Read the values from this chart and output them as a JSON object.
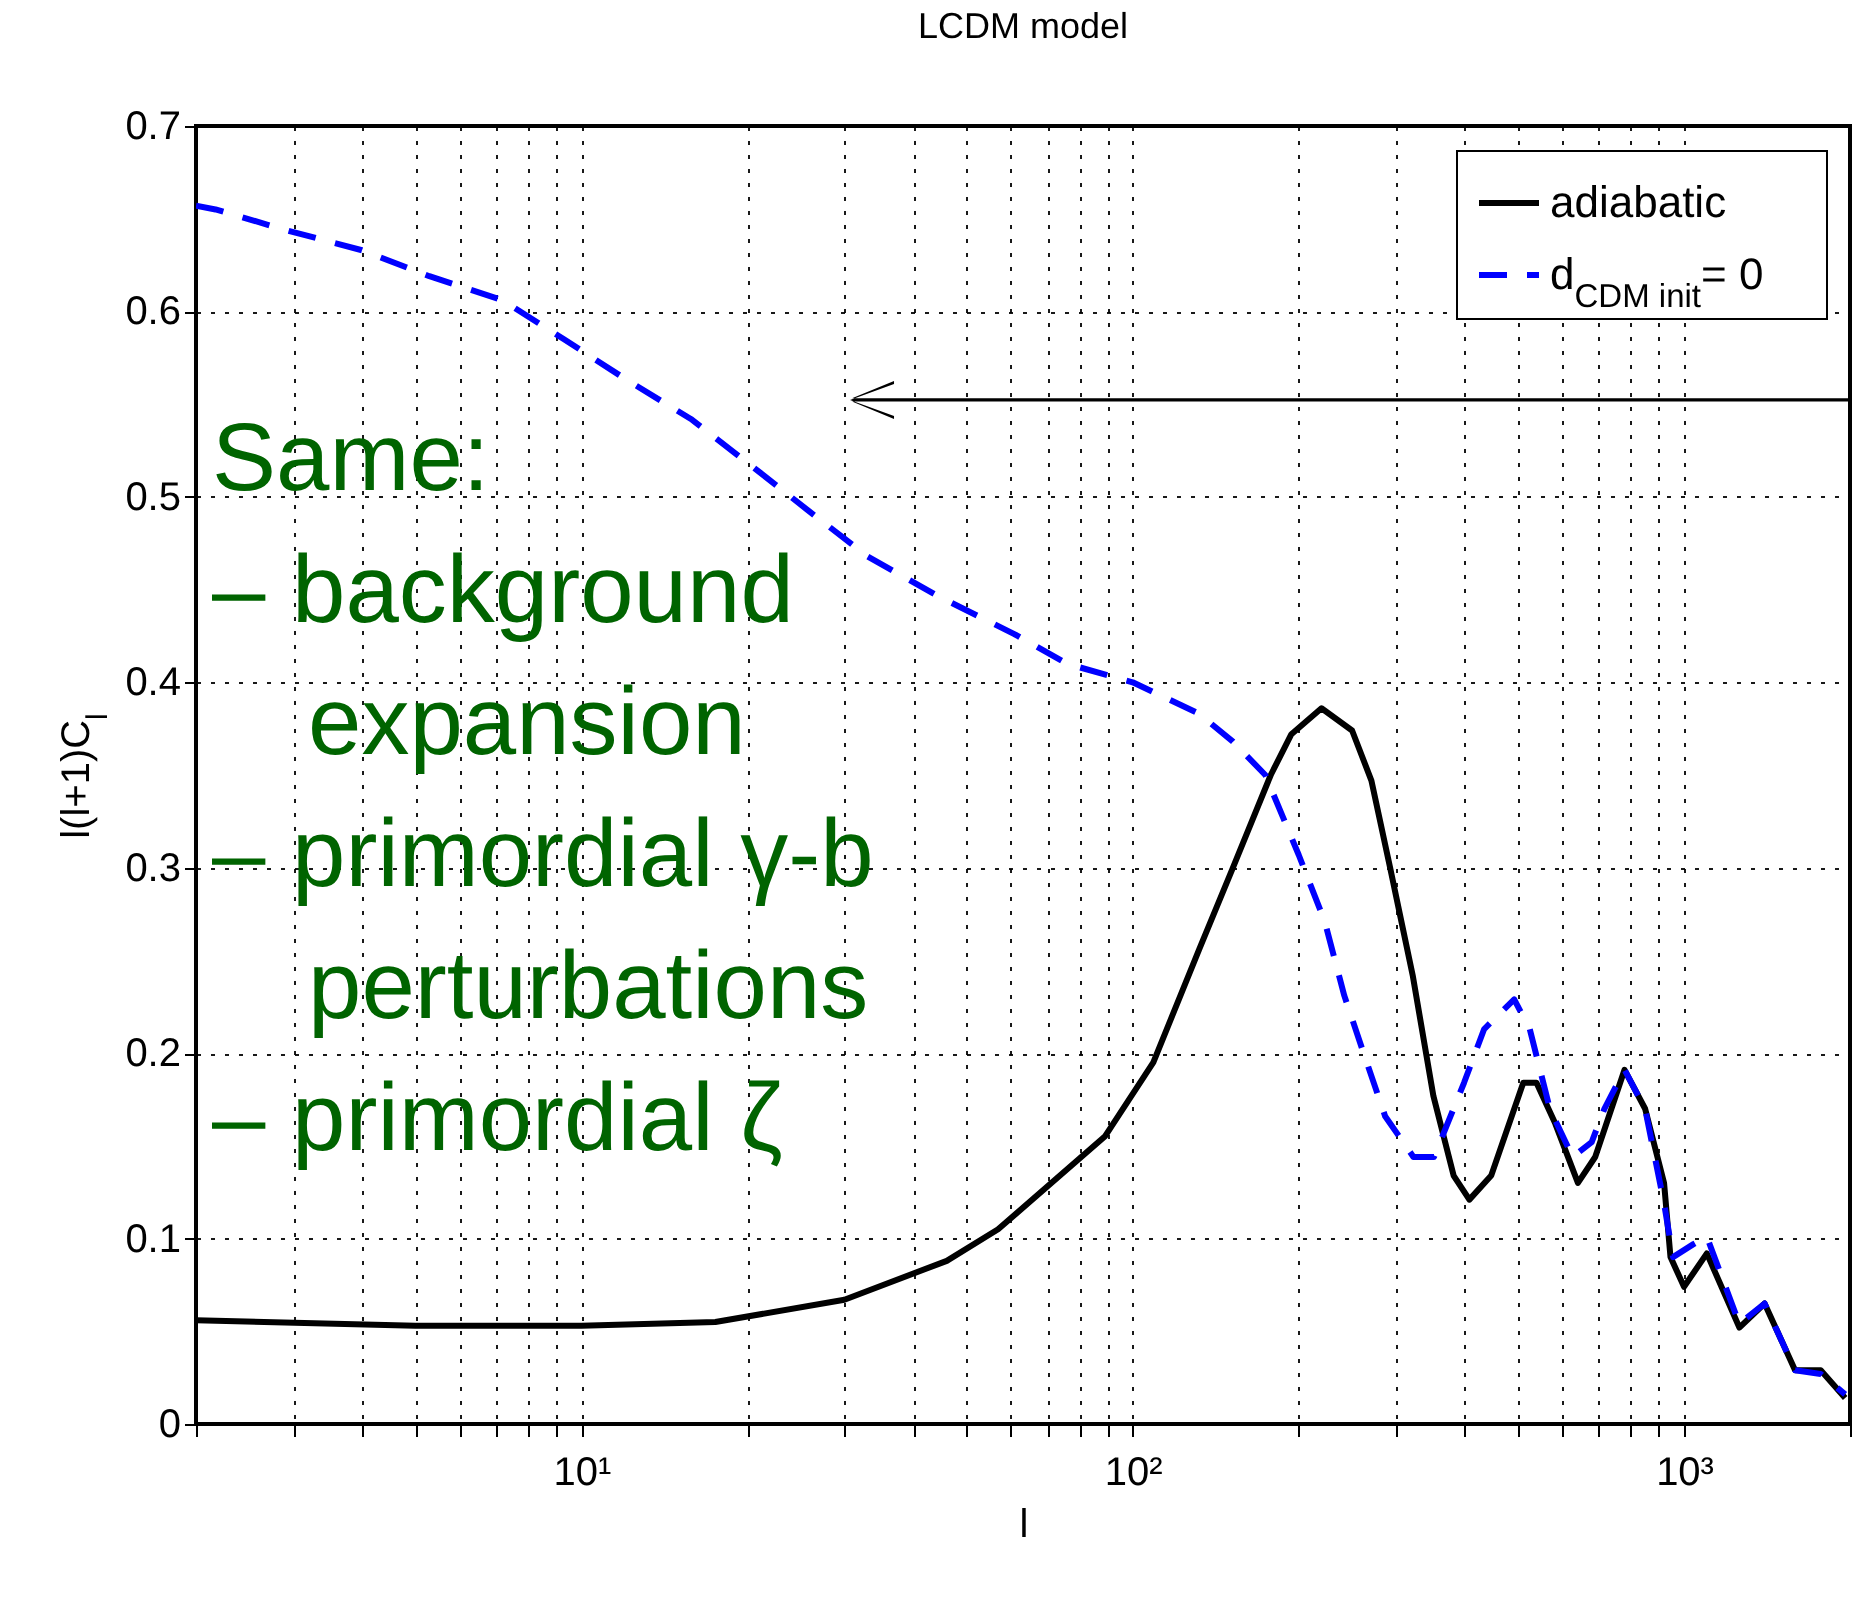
{
  "chart_data": {
    "type": "line",
    "title": "LCDM model",
    "xlabel": "l",
    "ylabel": "l(l+1)C$_{l}$",
    "log": "x",
    "grid": true,
    "legend": "top right",
    "xlim": [
      2,
      2000
    ],
    "ylim": [
      0,
      0.7
    ],
    "xticks": [
      {
        "value": 2,
        "label": null
      },
      {
        "value": 3,
        "label": null
      },
      {
        "value": 4,
        "label": null
      },
      {
        "value": 5,
        "label": null
      },
      {
        "value": 6,
        "label": null
      },
      {
        "value": 7,
        "label": null
      },
      {
        "value": 8,
        "label": null
      },
      {
        "value": 9,
        "label": null
      },
      {
        "value": 10,
        "label": "10¹"
      },
      {
        "value": 20,
        "label": null
      },
      {
        "value": 30,
        "label": null
      },
      {
        "value": 40,
        "label": null
      },
      {
        "value": 50,
        "label": null
      },
      {
        "value": 60,
        "label": null
      },
      {
        "value": 70,
        "label": null
      },
      {
        "value": 80,
        "label": null
      },
      {
        "value": 90,
        "label": null
      },
      {
        "value": 100,
        "label": "10²"
      },
      {
        "value": 200,
        "label": null
      },
      {
        "value": 300,
        "label": null
      },
      {
        "value": 400,
        "label": null
      },
      {
        "value": 500,
        "label": null
      },
      {
        "value": 600,
        "label": null
      },
      {
        "value": 700,
        "label": null
      },
      {
        "value": 800,
        "label": null
      },
      {
        "value": 900,
        "label": null
      },
      {
        "value": 1000,
        "label": "10³"
      },
      {
        "value": 2000,
        "label": null
      }
    ],
    "yticks": [
      0,
      0.1,
      0.2,
      0.3,
      0.4,
      0.5,
      0.6,
      0.7
    ],
    "series": [
      {
        "name": "adiabatic",
        "color": "#000000",
        "line_style": "solid",
        "x": [
          2,
          5,
          10,
          17.5,
          30,
          46,
          57,
          89,
          109,
          132,
          152,
          178,
          194,
          220,
          250,
          271,
          293,
          322,
          351,
          382,
          408,
          447,
          511,
          540,
          584,
          642,
          690,
          780,
          850,
          920,
          945,
          1000,
          1100,
          1260,
          1400,
          1590,
          1770,
          1960
        ],
        "values": [
          0.056,
          0.053,
          0.053,
          0.055,
          0.067,
          0.088,
          0.105,
          0.155,
          0.195,
          0.256,
          0.3,
          0.35,
          0.372,
          0.386,
          0.374,
          0.347,
          0.3,
          0.242,
          0.177,
          0.134,
          0.121,
          0.134,
          0.184,
          0.184,
          0.162,
          0.13,
          0.144,
          0.191,
          0.17,
          0.13,
          0.09,
          0.074,
          0.092,
          0.052,
          0.065,
          0.029,
          0.029,
          0.014
        ]
      },
      {
        "name": "d$_{CDM init}$= 0",
        "color": "#0000ff",
        "line_style": "dashed",
        "x": [
          2,
          2.17,
          2.9,
          4,
          5.3,
          7.2,
          9.3,
          12.1,
          15.8,
          20.3,
          25.7,
          33,
          44,
          61,
          76,
          100,
          132,
          152,
          174,
          200,
          223,
          242,
          263,
          287,
          323,
          352,
          399,
          434,
          492,
          525,
          571,
          628,
          680,
          717,
          780,
          850,
          920,
          955,
          1040,
          1100,
          1260,
          1400,
          1590,
          1770,
          1960
        ],
        "values": [
          0.657,
          0.655,
          0.644,
          0.633,
          0.619,
          0.606,
          0.585,
          0.563,
          0.542,
          0.517,
          0.493,
          0.468,
          0.447,
          0.426,
          0.41,
          0.4,
          0.383,
          0.368,
          0.35,
          0.307,
          0.271,
          0.231,
          0.199,
          0.166,
          0.144,
          0.144,
          0.184,
          0.213,
          0.229,
          0.213,
          0.17,
          0.144,
          0.152,
          0.17,
          0.191,
          0.17,
          0.119,
          0.09,
          0.097,
          0.101,
          0.054,
          0.065,
          0.029,
          0.027,
          0.016
        ]
      }
    ],
    "annotations": [
      "Same:\n– background\n  expansion\n– primordial γ-b\n  perturbations\n– primordial ζ"
    ]
  }
}
